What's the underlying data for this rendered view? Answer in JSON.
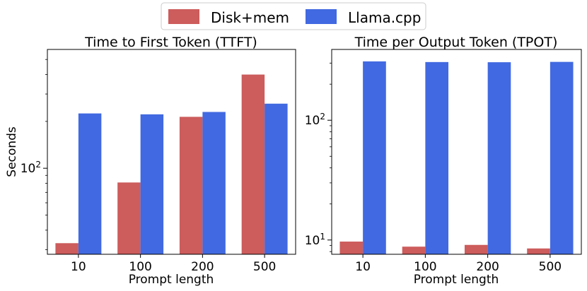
{
  "legend": {
    "entries": [
      {
        "label": "Disk+mem",
        "color": "#cd5c5c"
      },
      {
        "label": "Llama.cpp",
        "color": "#4169e1"
      }
    ],
    "placement": "top-center"
  },
  "chart_data": [
    {
      "type": "bar",
      "title": "Time to First Token (TTFT)",
      "xlabel": "Prompt length",
      "ylabel": "Seconds",
      "yscale": "log",
      "ylim": [
        28,
        580
      ],
      "major_ticks": [
        {
          "value": 100,
          "base": "10",
          "exp": "2"
        }
      ],
      "minor_ticks": [
        30,
        40,
        50,
        60,
        70,
        80,
        90,
        200,
        300,
        400,
        500
      ],
      "categories": [
        "10",
        "100",
        "200",
        "500"
      ],
      "series": [
        {
          "name": "Disk+mem",
          "values": [
            33,
            81,
            214,
            400
          ]
        },
        {
          "name": "Llama.cpp",
          "values": [
            225,
            222,
            230,
            260
          ]
        }
      ]
    },
    {
      "type": "bar",
      "title": "Time per Output Token (TPOT)",
      "xlabel": "Prompt length",
      "ylabel": "",
      "yscale": "log",
      "ylim": [
        7.6,
        390
      ],
      "major_ticks": [
        {
          "value": 10,
          "base": "10",
          "exp": "1"
        },
        {
          "value": 100,
          "base": "10",
          "exp": "2"
        }
      ],
      "minor_ticks": [
        8,
        9,
        20,
        30,
        40,
        50,
        60,
        70,
        80,
        90,
        200,
        300
      ],
      "categories": [
        "10",
        "100",
        "200",
        "500"
      ],
      "series": [
        {
          "name": "Disk+mem",
          "values": [
            9.7,
            8.8,
            9.1,
            8.5
          ]
        },
        {
          "name": "Llama.cpp",
          "values": [
            310,
            306,
            305,
            307
          ]
        }
      ]
    }
  ]
}
